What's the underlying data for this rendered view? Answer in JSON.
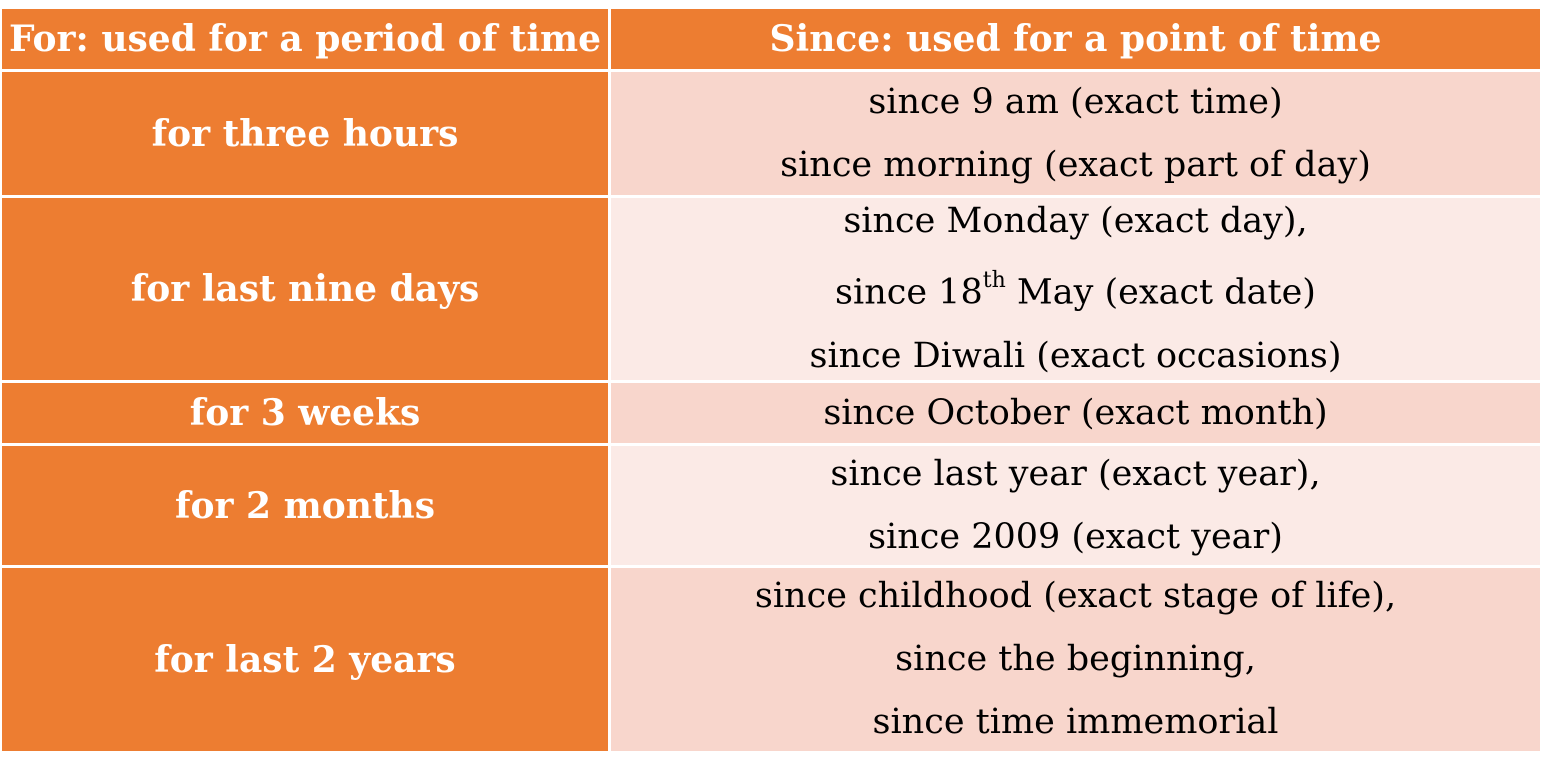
{
  "header": {
    "for_label": "For:  used for a period of time",
    "since_label": "Since: used for a point of time"
  },
  "rows": [
    {
      "for": "for three hours",
      "since": [
        "since 9 am (exact time)",
        "since morning (exact part of day)"
      ]
    },
    {
      "for": "for last nine days",
      "since": [
        "since Monday (exact day),",
        "since 18",
        "th",
        " May (exact date)",
        "since Diwali (exact occasions)"
      ]
    },
    {
      "for": "for 3 weeks",
      "since": [
        "since October (exact month)"
      ]
    },
    {
      "for": "for 2 months",
      "since": [
        "since last year (exact year),",
        "since 2009 (exact year)"
      ]
    },
    {
      "for": "for last 2 years",
      "since": [
        "since childhood (exact stage of life),",
        "since the beginning,",
        "since time immemorial"
      ]
    }
  ],
  "colors": {
    "header_bg": "#ed7d31",
    "left_col_bg": "#ed7d31",
    "row_shade_dark": "#f8d6cc",
    "row_shade_light": "#fbeae6"
  }
}
